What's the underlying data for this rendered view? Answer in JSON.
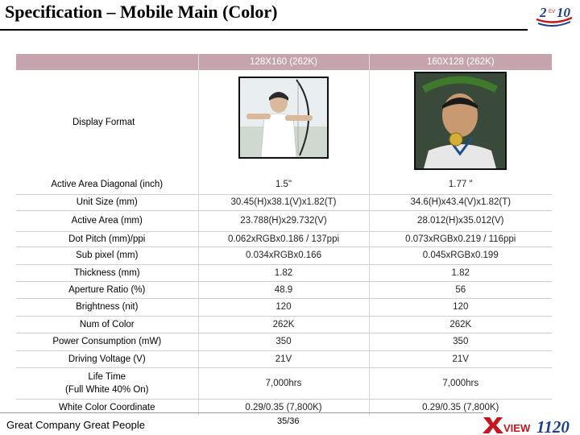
{
  "title": "Specification – Mobile Main (Color)",
  "logo_text": "2010",
  "columns": [
    "",
    "128X160 (262K)",
    "160X128 (262K)"
  ],
  "display_format_label": "Display Format",
  "rows": [
    {
      "label": "Active Area Diagonal (inch)",
      "v1": "1.5\"",
      "v2": "1.77 \""
    },
    {
      "label": "Unit Size (mm)",
      "v1": "30.45(H)x38.1(V)x1.82(T)",
      "v2": "34.6(H)x43.4(V)x1.82(T)"
    },
    {
      "label": "Active Area (mm)",
      "v1": "23.788(H)x29.732(V)",
      "v2": "28.012(H)x35.012(V)"
    },
    {
      "label": "Dot Pitch (mm)/ppi",
      "v1": "0.062xRGBx0.186 / 137ppi",
      "v2": "0.073xRGBx0.219 / 116ppi"
    },
    {
      "label": "Sub pixel (mm)",
      "v1": "0.034xRGBx0.166",
      "v2": "0.045xRGBx0.199"
    },
    {
      "label": "Thickness (mm)",
      "v1": "1.82",
      "v2": "1.82"
    },
    {
      "label": "Aperture Ratio (%)",
      "v1": "48.9",
      "v2": "56"
    },
    {
      "label": "Brightness (nit)",
      "v1": "120",
      "v2": "120"
    },
    {
      "label": "Num of Color",
      "v1": "262K",
      "v2": "262K"
    },
    {
      "label": "Power Consumption (mW)",
      "v1": "350",
      "v2": "350"
    },
    {
      "label": "Driving Voltage (V)",
      "v1": "21V",
      "v2": "21V"
    },
    {
      "label": "Life Time",
      "label2": "(Full White 40% On)",
      "v1": "7,000hrs",
      "v2": "7,000hrs"
    },
    {
      "label": "White Color Coordinate",
      "v1": "0.29/0.35 (7,800K)",
      "v2": "0.29/0.35 (7,800K)"
    }
  ],
  "footer_left": "Great Company Great People",
  "page_number": "35/36",
  "brand_text": "VIEW 1120",
  "colors": {
    "header_bg": "#c5a4ad",
    "brand_red": "#c4161c",
    "brand_blue": "#1d3f8f"
  }
}
